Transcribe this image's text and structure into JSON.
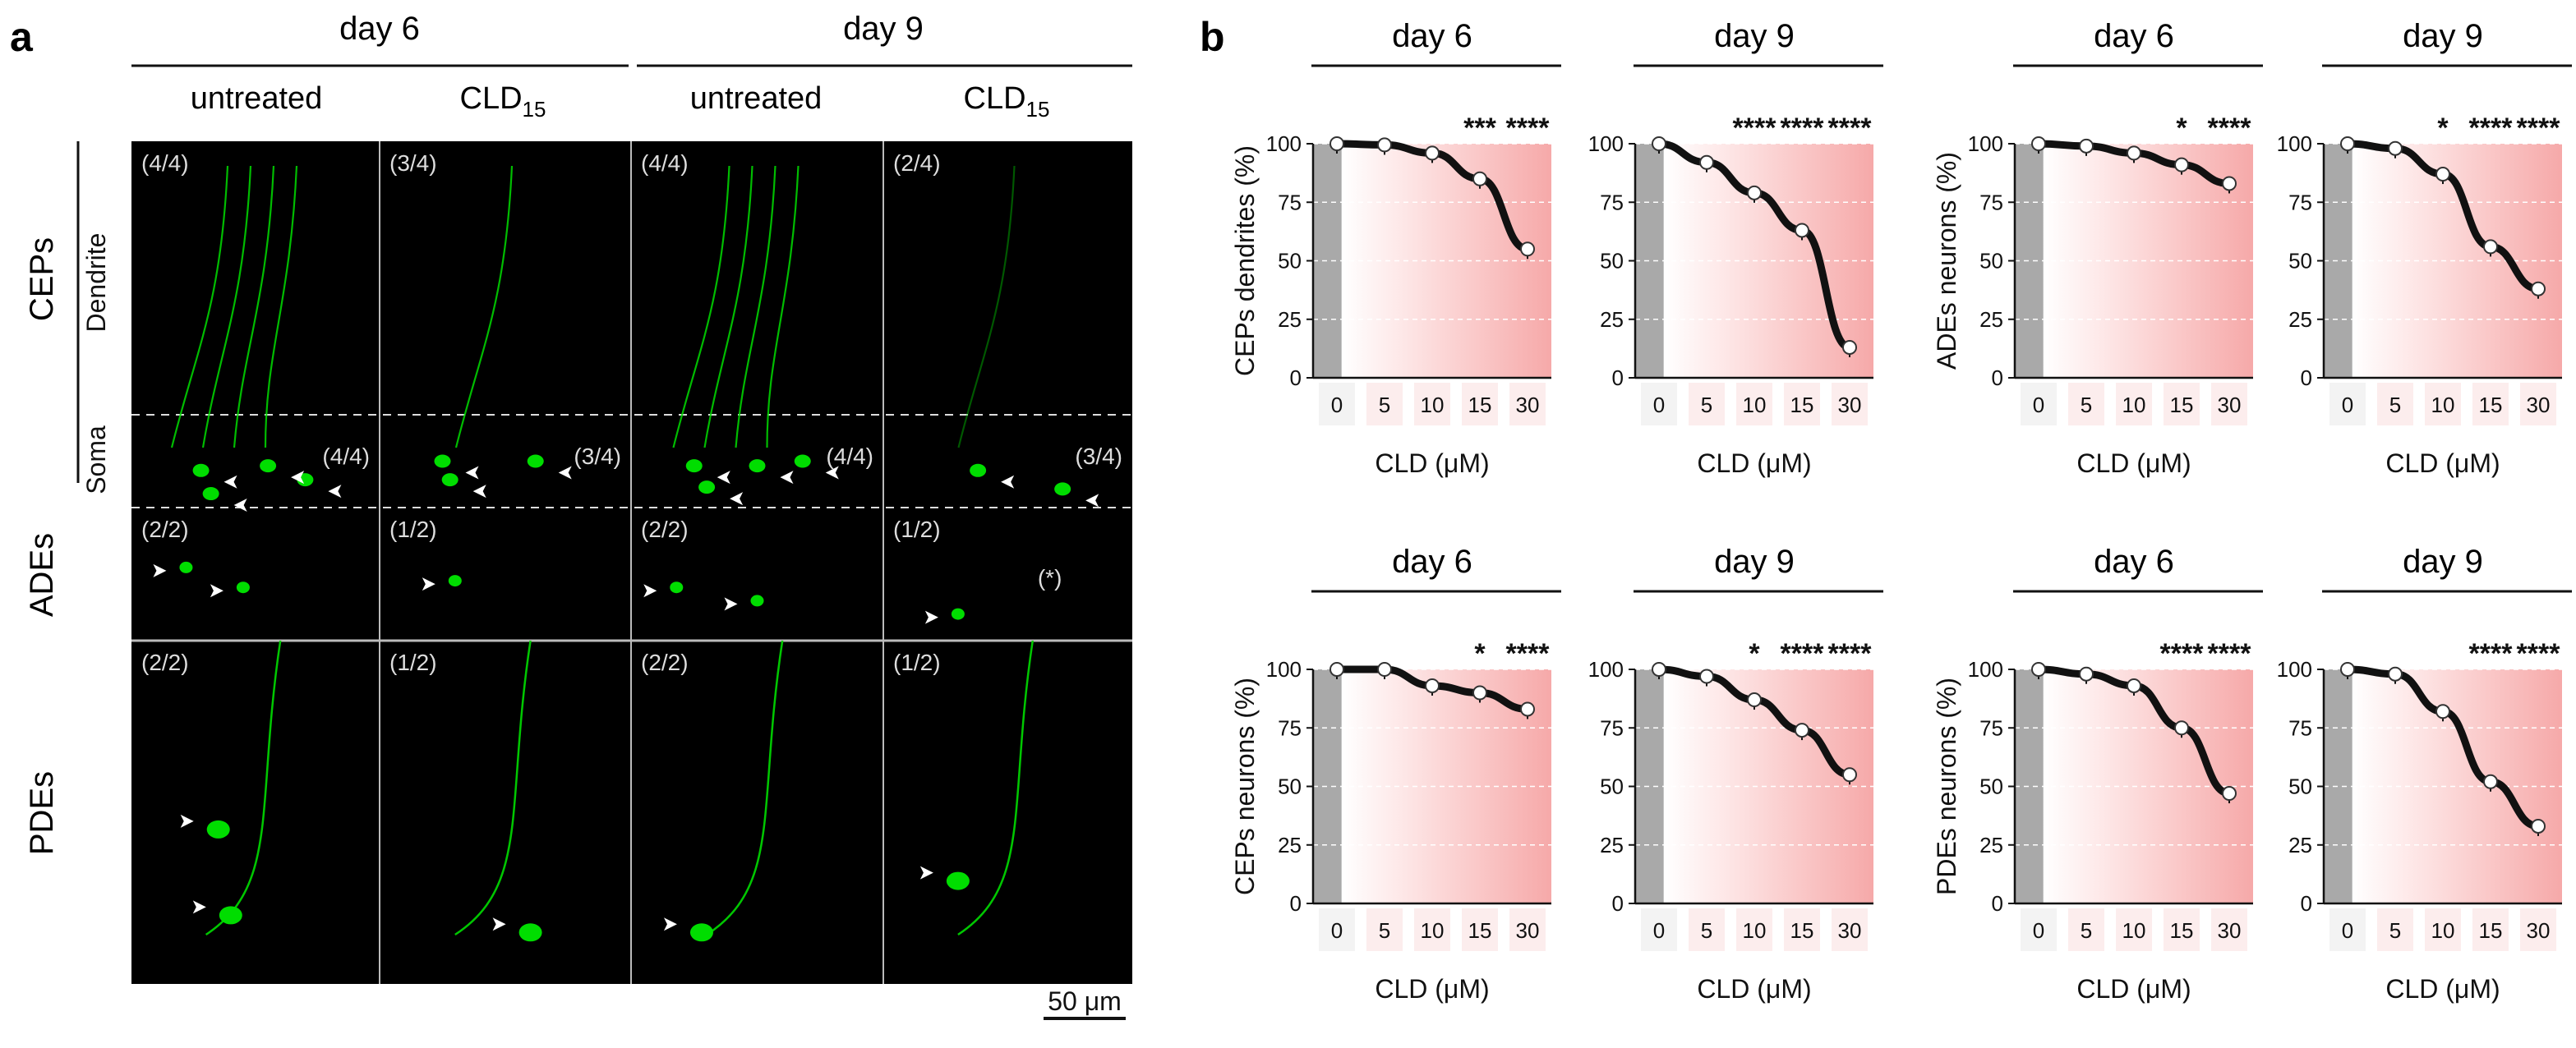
{
  "panel_a": {
    "label": "a",
    "day_headers": [
      "day 6",
      "day 9"
    ],
    "columns": [
      "untreated",
      "CLD",
      "untreated",
      "CLD"
    ],
    "cld_subscript": "15",
    "group_labels": {
      "ceps": "CEPs",
      "ades": "ADEs",
      "pdes": "PDEs"
    },
    "sub_labels": {
      "dendrite": "Dendrite",
      "soma": "Soma"
    },
    "counts": {
      "dendrite": [
        "(4/4)",
        "(3/4)",
        "(4/4)",
        "(2/4)"
      ],
      "soma": [
        "(4/4)",
        "(3/4)",
        "(4/4)",
        "(3/4)"
      ],
      "ades": [
        "(2/2)",
        "(1/2)",
        "(2/2)",
        "(1/2)"
      ],
      "pdes": [
        "(2/2)",
        "(1/2)",
        "(2/2)",
        "(1/2)"
      ]
    },
    "ades_note": "(*)",
    "scale_bar": "50 μm",
    "accent_color": "#00dd00"
  },
  "panel_b": {
    "label": "b",
    "tick_ylabels": [
      "0",
      "25",
      "50",
      "75",
      "100"
    ],
    "tick_xlabels": [
      "0",
      "5",
      "10",
      "15",
      "30"
    ],
    "chart_data": [
      {
        "type": "line",
        "title": "day 6",
        "ylabel": "CEPs dendrites (%)",
        "xlabel": "CLD (μM)",
        "categories": [
          "0",
          "5",
          "10",
          "15",
          "30"
        ],
        "values": [
          100,
          99.5,
          96,
          85,
          55
        ],
        "ylim": [
          0,
          100
        ],
        "significance": [
          "",
          "",
          "",
          "***",
          "****"
        ]
      },
      {
        "type": "line",
        "title": "day 9",
        "ylabel": "",
        "xlabel": "CLD (μM)",
        "categories": [
          "0",
          "5",
          "10",
          "15",
          "30"
        ],
        "values": [
          100,
          92,
          79,
          63,
          13
        ],
        "ylim": [
          0,
          100
        ],
        "significance": [
          "",
          "",
          "****",
          "****",
          "****"
        ]
      },
      {
        "type": "line",
        "title": "day 6",
        "ylabel": "ADEs neurons (%)",
        "xlabel": "CLD (μM)",
        "categories": [
          "0",
          "5",
          "10",
          "15",
          "30"
        ],
        "values": [
          100,
          99,
          96,
          91,
          83
        ],
        "ylim": [
          0,
          100
        ],
        "significance": [
          "",
          "",
          "",
          "*",
          "****"
        ]
      },
      {
        "type": "line",
        "title": "day 9",
        "ylabel": "",
        "xlabel": "CLD (μM)",
        "categories": [
          "0",
          "5",
          "10",
          "15",
          "30"
        ],
        "values": [
          100,
          98,
          87,
          56,
          38
        ],
        "ylim": [
          0,
          100
        ],
        "significance": [
          "",
          "",
          "*",
          "****",
          "****"
        ]
      },
      {
        "type": "line",
        "title": "day 6",
        "ylabel": "CEPs neurons (%)",
        "xlabel": "CLD (μM)",
        "categories": [
          "0",
          "5",
          "10",
          "15",
          "30"
        ],
        "values": [
          100,
          100,
          93,
          90,
          83
        ],
        "ylim": [
          0,
          100
        ],
        "significance": [
          "",
          "",
          "",
          "*",
          "****"
        ]
      },
      {
        "type": "line",
        "title": "day 9",
        "ylabel": "",
        "xlabel": "CLD (μM)",
        "categories": [
          "0",
          "5",
          "10",
          "15",
          "30"
        ],
        "values": [
          100,
          97,
          87,
          74,
          55
        ],
        "ylim": [
          0,
          100
        ],
        "significance": [
          "",
          "",
          "*",
          "****",
          "****"
        ]
      },
      {
        "type": "line",
        "title": "day 6",
        "ylabel": "PDEs neurons (%)",
        "xlabel": "CLD (μM)",
        "categories": [
          "0",
          "5",
          "10",
          "15",
          "30"
        ],
        "values": [
          100,
          98,
          93,
          75,
          47
        ],
        "ylim": [
          0,
          100
        ],
        "significance": [
          "",
          "",
          "",
          "****",
          "****"
        ]
      },
      {
        "type": "line",
        "title": "day 9",
        "ylabel": "",
        "xlabel": "CLD (μM)",
        "categories": [
          "0",
          "5",
          "10",
          "15",
          "30"
        ],
        "values": [
          100,
          98,
          82,
          52,
          33
        ],
        "ylim": [
          0,
          100
        ],
        "significance": [
          "",
          "",
          "",
          "****",
          "****"
        ]
      }
    ]
  }
}
